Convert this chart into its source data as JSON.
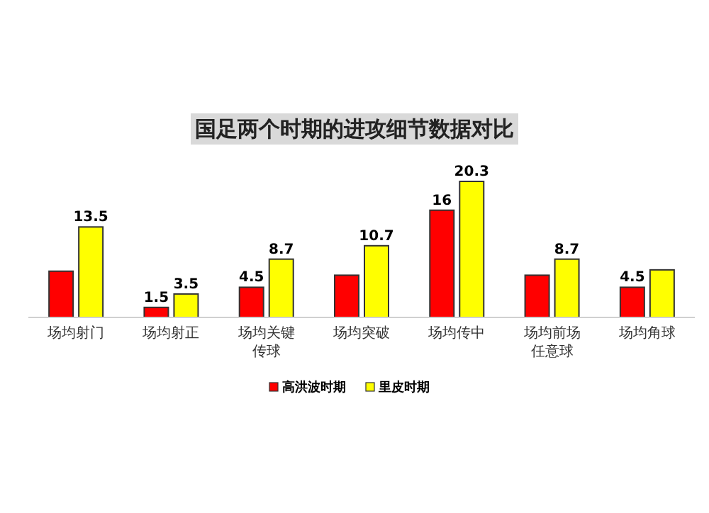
{
  "chart_data": {
    "type": "bar",
    "title": "国足两个时期的进攻细节数据对比",
    "categories": [
      "场均射门",
      "场均射正",
      "场均关键传球",
      "场均突破",
      "场均传中",
      "场均前场任意球",
      "场均角球"
    ],
    "series": [
      {
        "name": "高洪波时期",
        "color": "#ff0000",
        "values": [
          6.9,
          1.5,
          4.5,
          6.3,
          16,
          6.3,
          4.5
        ],
        "value_labels": [
          null,
          "1.5",
          "4.5",
          null,
          "16",
          null,
          "4.5"
        ]
      },
      {
        "name": "里皮时期",
        "color": "#ffff00",
        "values": [
          13.5,
          3.5,
          8.7,
          10.7,
          20.3,
          8.7,
          7.1
        ],
        "value_labels": [
          "13.5",
          "3.5",
          "8.7",
          "10.7",
          "20.3",
          "8.7",
          null
        ]
      }
    ],
    "legend": "bottom"
  }
}
